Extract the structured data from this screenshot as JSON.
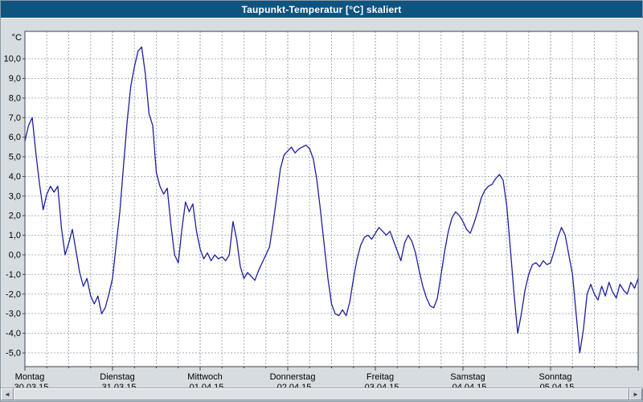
{
  "window": {
    "title": "Taupunkt-Temperatur [°C] skaliert"
  },
  "scrollbar": {
    "left_arrow": "◄",
    "right_arrow": "►"
  },
  "chart_data": {
    "type": "line",
    "title": "Taupunkt-Temperatur [°C] skaliert",
    "ylabel": "°C",
    "xlabel": "",
    "ylim": [
      -5.7,
      11.4
    ],
    "total_hours": 168,
    "grid": {
      "on": true,
      "dashed": true,
      "v_interval_hours": 6
    },
    "legend_position": "none",
    "colors": {
      "plot_bg": "#ffffff",
      "frame": "#3c4650",
      "grid": "#a8b2bc",
      "grid_day": "#8c98a4",
      "line": "#1f1f9e",
      "titlebar_bg": "#0f5480",
      "titlebar_text": "#ffffff",
      "window_bg": "#d7dce1"
    },
    "y_ticks": [
      {
        "v": 10,
        "label": "10,0"
      },
      {
        "v": 9,
        "label": "9,0"
      },
      {
        "v": 8,
        "label": "8,0"
      },
      {
        "v": 7,
        "label": "7,0"
      },
      {
        "v": 6,
        "label": "6,0"
      },
      {
        "v": 5,
        "label": "5,0"
      },
      {
        "v": 4,
        "label": "4,0"
      },
      {
        "v": 3,
        "label": "3,0"
      },
      {
        "v": 2,
        "label": "2,0"
      },
      {
        "v": 1,
        "label": "1,0"
      },
      {
        "v": 0,
        "label": "0,0"
      },
      {
        "v": -1,
        "label": "-1,0"
      },
      {
        "v": -2,
        "label": "-2,0"
      },
      {
        "v": -3,
        "label": "-3,0"
      },
      {
        "v": -4,
        "label": "-4,0"
      },
      {
        "v": -5,
        "label": "-5,0"
      }
    ],
    "x_days": [
      {
        "name": "Montag",
        "date": "30.03.15"
      },
      {
        "name": "Dienstag",
        "date": "31.03.15"
      },
      {
        "name": "Mittwoch",
        "date": "01.04.15"
      },
      {
        "name": "Donnerstag",
        "date": "02.04.15"
      },
      {
        "name": "Freitag",
        "date": "03.04.15"
      },
      {
        "name": "Samstag",
        "date": "04.04.15"
      },
      {
        "name": "Sonntag",
        "date": "05.04.15"
      }
    ],
    "series": [
      {
        "name": "Taupunkt-Temperatur",
        "color": "#1f1f9e",
        "unit": "°C",
        "interval_hours": 1,
        "values": [
          5.8,
          6.6,
          7.0,
          5.2,
          3.6,
          2.3,
          3.1,
          3.5,
          3.2,
          3.5,
          1.4,
          0.0,
          0.6,
          1.3,
          0.2,
          -0.9,
          -1.6,
          -1.2,
          -2.1,
          -2.5,
          -2.1,
          -3.0,
          -2.7,
          -2.0,
          -1.2,
          0.5,
          2.2,
          4.5,
          6.8,
          8.6,
          9.6,
          10.4,
          10.6,
          9.2,
          7.2,
          6.6,
          4.2,
          3.5,
          3.1,
          3.4,
          1.5,
          0.0,
          -0.4,
          1.3,
          2.7,
          2.2,
          2.6,
          1.2,
          0.3,
          -0.2,
          0.1,
          -0.3,
          0.0,
          -0.2,
          -0.1,
          -0.3,
          0.0,
          1.7,
          0.8,
          -0.6,
          -1.2,
          -0.9,
          -1.1,
          -1.3,
          -0.8,
          -0.4,
          0.0,
          0.4,
          1.6,
          3.0,
          4.4,
          5.1,
          5.3,
          5.5,
          5.2,
          5.4,
          5.5,
          5.6,
          5.4,
          4.9,
          3.8,
          2.2,
          0.5,
          -1.2,
          -2.5,
          -3.0,
          -3.1,
          -2.8,
          -3.1,
          -2.4,
          -1.2,
          -0.2,
          0.5,
          0.9,
          1.0,
          0.8,
          1.1,
          1.4,
          1.2,
          1.0,
          1.2,
          0.7,
          0.2,
          -0.3,
          0.6,
          1.0,
          0.7,
          0.1,
          -0.8,
          -1.6,
          -2.2,
          -2.6,
          -2.7,
          -2.2,
          -1.0,
          0.2,
          1.2,
          1.9,
          2.2,
          2.0,
          1.7,
          1.3,
          1.1,
          1.6,
          2.2,
          2.9,
          3.3,
          3.5,
          3.6,
          3.9,
          4.1,
          3.8,
          2.5,
          0.3,
          -2.0,
          -4.0,
          -3.0,
          -1.8,
          -1.0,
          -0.5,
          -0.4,
          -0.6,
          -0.3,
          -0.5,
          -0.4,
          0.2,
          0.9,
          1.4,
          1.0,
          0.0,
          -1.0,
          -3.0,
          -5.0,
          -3.8,
          -2.0,
          -1.5,
          -2.0,
          -2.3,
          -1.6,
          -2.1,
          -1.4,
          -1.9,
          -2.2,
          -1.5,
          -1.8,
          -2.0,
          -1.4,
          -1.7,
          -1.2
        ]
      }
    ]
  }
}
